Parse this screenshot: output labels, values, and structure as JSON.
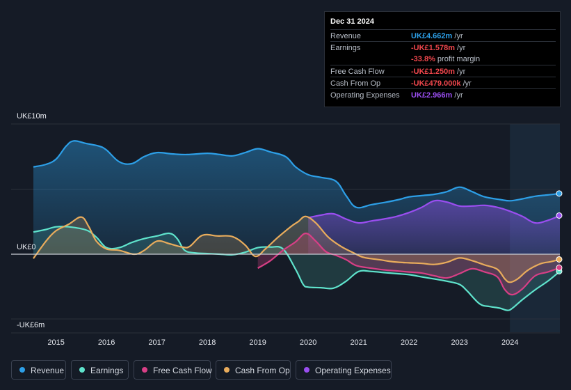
{
  "tooltip": {
    "date": "Dec 31 2024",
    "rows": [
      {
        "label": "Revenue",
        "value": "UK£4.662m",
        "unit": "/yr",
        "color": "#2d9fe7"
      },
      {
        "label": "Earnings",
        "value": "-UK£1.578m",
        "unit": "/yr",
        "color": "#f2474d"
      },
      {
        "label": "",
        "value": "-33.8%",
        "unit": "profit margin",
        "color": "#f2474d"
      },
      {
        "label": "Free Cash Flow",
        "value": "-UK£1.250m",
        "unit": "/yr",
        "color": "#f2474d"
      },
      {
        "label": "Cash From Op",
        "value": "-UK£479.000k",
        "unit": "/yr",
        "color": "#f2474d"
      },
      {
        "label": "Operating Expenses",
        "value": "UK£2.966m",
        "unit": "/yr",
        "color": "#9a4ef0"
      }
    ]
  },
  "legend": [
    {
      "label": "Revenue",
      "color": "#2d9fe7"
    },
    {
      "label": "Earnings",
      "color": "#5fe3cc"
    },
    {
      "label": "Free Cash Flow",
      "color": "#d83f86"
    },
    {
      "label": "Cash From Op",
      "color": "#e9ac5c"
    },
    {
      "label": "Operating Expenses",
      "color": "#9a4ef0"
    }
  ],
  "chart_data": {
    "type": "line",
    "y_axis_labels": [
      "UK£10m",
      "UK£0",
      "-UK£6m"
    ],
    "ylim": [
      -6,
      10
    ],
    "xlim": [
      2014.55,
      2024.99
    ],
    "x_ticks": [
      "2015",
      "2016",
      "2017",
      "2018",
      "2019",
      "2020",
      "2021",
      "2022",
      "2023",
      "2024"
    ],
    "x_tick_values": [
      2015,
      2016,
      2017,
      2018,
      2019,
      2020,
      2021,
      2022,
      2023,
      2024
    ],
    "highlight_from": 2024.0,
    "series": [
      {
        "name": "Revenue",
        "color": "#2d9fe7",
        "fill": true,
        "points": [
          [
            2014.55,
            6.7
          ],
          [
            2014.8,
            6.9
          ],
          [
            2015.0,
            7.3
          ],
          [
            2015.2,
            8.3
          ],
          [
            2015.35,
            8.7
          ],
          [
            2015.6,
            8.5
          ],
          [
            2015.85,
            8.3
          ],
          [
            2016.0,
            8.0
          ],
          [
            2016.25,
            7.1
          ],
          [
            2016.5,
            6.95
          ],
          [
            2016.75,
            7.5
          ],
          [
            2017.0,
            7.8
          ],
          [
            2017.3,
            7.7
          ],
          [
            2017.6,
            7.65
          ],
          [
            2018.0,
            7.75
          ],
          [
            2018.25,
            7.65
          ],
          [
            2018.5,
            7.55
          ],
          [
            2018.75,
            7.8
          ],
          [
            2019.0,
            8.1
          ],
          [
            2019.25,
            7.85
          ],
          [
            2019.55,
            7.5
          ],
          [
            2019.75,
            6.7
          ],
          [
            2020.0,
            6.1
          ],
          [
            2020.25,
            5.9
          ],
          [
            2020.55,
            5.6
          ],
          [
            2020.75,
            4.5
          ],
          [
            2020.95,
            3.6
          ],
          [
            2021.25,
            3.8
          ],
          [
            2021.55,
            4.0
          ],
          [
            2021.8,
            4.2
          ],
          [
            2022.0,
            4.4
          ],
          [
            2022.25,
            4.5
          ],
          [
            2022.5,
            4.6
          ],
          [
            2022.75,
            4.8
          ],
          [
            2023.0,
            5.15
          ],
          [
            2023.25,
            4.8
          ],
          [
            2023.5,
            4.4
          ],
          [
            2023.8,
            4.2
          ],
          [
            2024.0,
            4.1
          ],
          [
            2024.25,
            4.25
          ],
          [
            2024.5,
            4.45
          ],
          [
            2024.75,
            4.55
          ],
          [
            2024.99,
            4.66
          ]
        ]
      },
      {
        "name": "Operating Expenses",
        "color": "#9a4ef0",
        "fill": true,
        "points": [
          [
            2020.0,
            2.8
          ],
          [
            2020.25,
            3.0
          ],
          [
            2020.5,
            3.1
          ],
          [
            2020.75,
            2.7
          ],
          [
            2021.0,
            2.4
          ],
          [
            2021.25,
            2.55
          ],
          [
            2021.5,
            2.7
          ],
          [
            2021.75,
            2.9
          ],
          [
            2022.0,
            3.2
          ],
          [
            2022.25,
            3.6
          ],
          [
            2022.5,
            4.1
          ],
          [
            2022.75,
            4.0
          ],
          [
            2023.0,
            3.7
          ],
          [
            2023.25,
            3.7
          ],
          [
            2023.5,
            3.75
          ],
          [
            2023.75,
            3.6
          ],
          [
            2024.0,
            3.3
          ],
          [
            2024.25,
            2.9
          ],
          [
            2024.5,
            2.4
          ],
          [
            2024.75,
            2.6
          ],
          [
            2024.99,
            2.97
          ]
        ]
      },
      {
        "name": "Earnings",
        "color": "#5fe3cc",
        "fill": true,
        "points": [
          [
            2014.55,
            1.7
          ],
          [
            2014.8,
            1.9
          ],
          [
            2015.0,
            2.1
          ],
          [
            2015.25,
            2.1
          ],
          [
            2015.6,
            1.85
          ],
          [
            2015.8,
            1.3
          ],
          [
            2016.0,
            0.5
          ],
          [
            2016.25,
            0.5
          ],
          [
            2016.5,
            0.9
          ],
          [
            2016.75,
            1.2
          ],
          [
            2017.0,
            1.4
          ],
          [
            2017.25,
            1.6
          ],
          [
            2017.4,
            1.2
          ],
          [
            2017.55,
            0.3
          ],
          [
            2017.75,
            0.1
          ],
          [
            2018.0,
            0.05
          ],
          [
            2018.25,
            0.0
          ],
          [
            2018.5,
            -0.05
          ],
          [
            2018.75,
            0.15
          ],
          [
            2019.0,
            0.5
          ],
          [
            2019.25,
            0.55
          ],
          [
            2019.5,
            0.4
          ],
          [
            2019.75,
            -1.4
          ],
          [
            2019.9,
            -2.8
          ],
          [
            2020.0,
            -3.05
          ],
          [
            2020.25,
            -3.1
          ],
          [
            2020.5,
            -3.15
          ],
          [
            2020.75,
            -2.5
          ],
          [
            2021.0,
            -1.6
          ],
          [
            2021.25,
            -1.6
          ],
          [
            2021.5,
            -1.7
          ],
          [
            2021.75,
            -1.8
          ],
          [
            2022.0,
            -1.9
          ],
          [
            2022.25,
            -2.1
          ],
          [
            2022.5,
            -2.3
          ],
          [
            2022.75,
            -2.5
          ],
          [
            2023.0,
            -2.8
          ],
          [
            2023.15,
            -3.4
          ],
          [
            2023.4,
            -4.6
          ],
          [
            2023.6,
            -4.85
          ],
          [
            2023.8,
            -5.0
          ],
          [
            2023.95,
            -5.2
          ],
          [
            2024.05,
            -5.0
          ],
          [
            2024.25,
            -4.2
          ],
          [
            2024.5,
            -3.3
          ],
          [
            2024.75,
            -2.5
          ],
          [
            2024.99,
            -1.58
          ]
        ]
      },
      {
        "name": "Free Cash Flow",
        "color": "#d83f86",
        "fill": true,
        "points": [
          [
            2019.0,
            -1.3
          ],
          [
            2019.25,
            -0.6
          ],
          [
            2019.5,
            0.3
          ],
          [
            2019.75,
            0.95
          ],
          [
            2019.95,
            1.6
          ],
          [
            2020.15,
            1.0
          ],
          [
            2020.35,
            0.2
          ],
          [
            2020.55,
            -0.1
          ],
          [
            2020.75,
            -0.5
          ],
          [
            2020.95,
            -1.05
          ],
          [
            2021.25,
            -1.3
          ],
          [
            2021.5,
            -1.45
          ],
          [
            2021.75,
            -1.55
          ],
          [
            2022.0,
            -1.65
          ],
          [
            2022.25,
            -1.75
          ],
          [
            2022.5,
            -2.0
          ],
          [
            2022.75,
            -2.2
          ],
          [
            2023.0,
            -1.8
          ],
          [
            2023.25,
            -1.35
          ],
          [
            2023.5,
            -1.65
          ],
          [
            2023.75,
            -2.1
          ],
          [
            2023.9,
            -3.3
          ],
          [
            2024.05,
            -3.75
          ],
          [
            2024.25,
            -3.2
          ],
          [
            2024.5,
            -2.0
          ],
          [
            2024.75,
            -1.65
          ],
          [
            2024.99,
            -1.25
          ]
        ]
      },
      {
        "name": "Cash From Op",
        "color": "#e9ac5c",
        "fill": true,
        "points": [
          [
            2014.55,
            -0.4
          ],
          [
            2014.8,
            1.0
          ],
          [
            2015.0,
            1.8
          ],
          [
            2015.25,
            2.3
          ],
          [
            2015.5,
            2.85
          ],
          [
            2015.65,
            2.1
          ],
          [
            2015.8,
            1.0
          ],
          [
            2016.0,
            0.4
          ],
          [
            2016.25,
            0.3
          ],
          [
            2016.55,
            0.0
          ],
          [
            2016.75,
            0.3
          ],
          [
            2017.0,
            1.0
          ],
          [
            2017.25,
            0.8
          ],
          [
            2017.5,
            0.55
          ],
          [
            2017.65,
            0.6
          ],
          [
            2017.9,
            1.45
          ],
          [
            2018.2,
            1.4
          ],
          [
            2018.5,
            1.35
          ],
          [
            2018.75,
            0.7
          ],
          [
            2018.95,
            -0.2
          ],
          [
            2019.15,
            0.4
          ],
          [
            2019.4,
            1.3
          ],
          [
            2019.65,
            2.1
          ],
          [
            2019.8,
            2.5
          ],
          [
            2019.95,
            2.9
          ],
          [
            2020.15,
            2.4
          ],
          [
            2020.4,
            1.3
          ],
          [
            2020.65,
            0.6
          ],
          [
            2020.9,
            0.1
          ],
          [
            2021.1,
            -0.3
          ],
          [
            2021.4,
            -0.5
          ],
          [
            2021.6,
            -0.65
          ],
          [
            2021.8,
            -0.75
          ],
          [
            2022.0,
            -0.8
          ],
          [
            2022.25,
            -0.85
          ],
          [
            2022.5,
            -0.95
          ],
          [
            2022.75,
            -0.75
          ],
          [
            2023.0,
            -0.35
          ],
          [
            2023.25,
            -0.6
          ],
          [
            2023.5,
            -1.0
          ],
          [
            2023.75,
            -1.4
          ],
          [
            2023.9,
            -2.3
          ],
          [
            2024.0,
            -2.6
          ],
          [
            2024.15,
            -2.3
          ],
          [
            2024.35,
            -1.5
          ],
          [
            2024.6,
            -0.9
          ],
          [
            2024.8,
            -0.7
          ],
          [
            2024.99,
            -0.48
          ]
        ]
      }
    ]
  }
}
